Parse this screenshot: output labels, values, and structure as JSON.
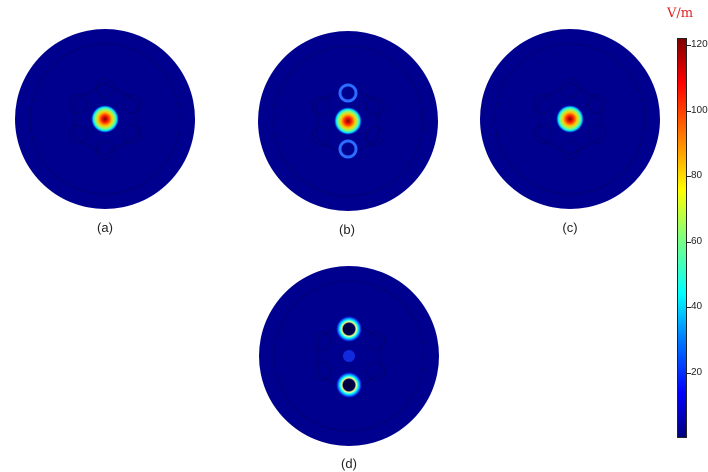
{
  "panels": [
    {
      "id": "a",
      "caption": "(a)",
      "mode": "center"
    },
    {
      "id": "b",
      "caption": "(b)",
      "mode": "center-with-side"
    },
    {
      "id": "c",
      "caption": "(c)",
      "mode": "center"
    },
    {
      "id": "d",
      "caption": "(d)",
      "mode": "two-lobes"
    }
  ],
  "colorbar": {
    "unit": "V/m",
    "ticks": [
      "120",
      "100",
      "80",
      "60",
      "40",
      "20"
    ],
    "colors": {
      "low": "#00007f",
      "mid": "#00ffff",
      "high": "#7f0000"
    }
  }
}
